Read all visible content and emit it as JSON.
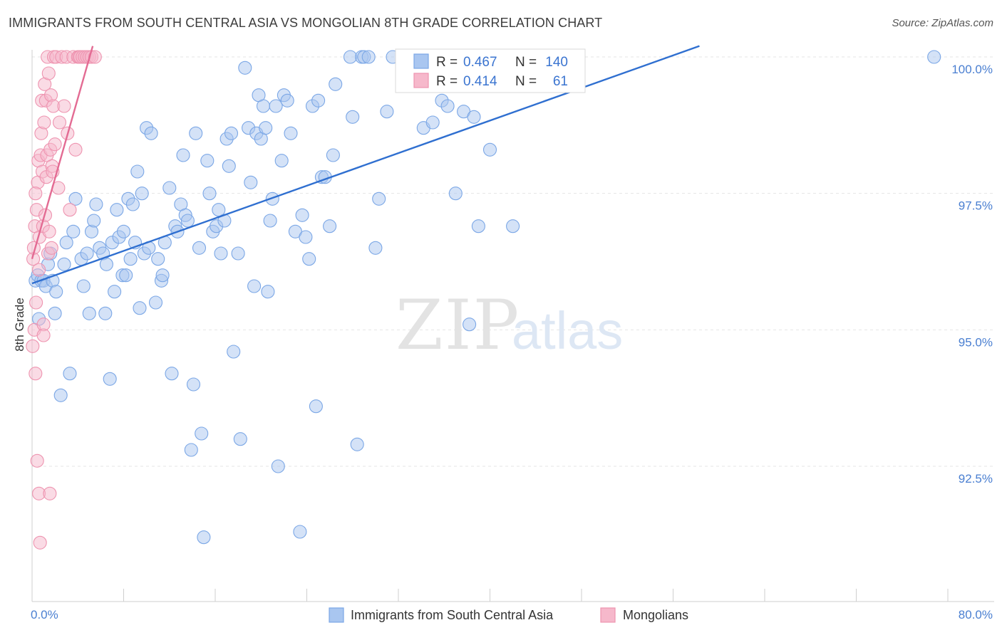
{
  "header": {
    "title": "IMMIGRANTS FROM SOUTH CENTRAL ASIA VS MONGOLIAN 8TH GRADE CORRELATION CHART",
    "source": "Source: ZipAtlas.com"
  },
  "watermark": {
    "zip": "ZIP",
    "atlas": "atlas"
  },
  "chart_data": {
    "type": "scatter",
    "ylabel": "8th Grade",
    "xlim": [
      0,
      80
    ],
    "ylim": [
      90.2,
      100.4
    ],
    "x_tick_labels": [
      {
        "value": 0,
        "label": "0.0%"
      },
      {
        "value": 80,
        "label": "80.0%"
      }
    ],
    "y_tick_labels": [
      {
        "value": 100,
        "label": "100.0%"
      },
      {
        "value": 97.5,
        "label": "97.5%"
      },
      {
        "value": 95,
        "label": "95.0%"
      },
      {
        "value": 92.5,
        "label": "92.5%"
      }
    ],
    "grid": true,
    "legend_placement": "bottom-center",
    "stats_box": {
      "rows": [
        {
          "r_label": "R =",
          "r_value": "0.467",
          "n_label": "N =",
          "n_value": "140"
        },
        {
          "r_label": "R =",
          "r_value": "0.414",
          "n_label": "N =",
          "n_value": "61"
        }
      ]
    },
    "series": [
      {
        "name": "Immigrants from South Central Asia",
        "color": "#7ba7e6",
        "fill": "#a9c6f0",
        "trend_color": "#2f6fd0",
        "trend": {
          "x1": 0,
          "y1": 95.85,
          "x2": 58.3,
          "y2": 100.2
        },
        "points": [
          [
            0.3,
            95.9
          ],
          [
            0.5,
            96.0
          ],
          [
            0.6,
            95.2
          ],
          [
            0.8,
            95.9
          ],
          [
            1.0,
            95.9
          ],
          [
            1.2,
            95.8
          ],
          [
            1.4,
            96.2
          ],
          [
            1.6,
            96.4
          ],
          [
            1.8,
            95.9
          ],
          [
            2.0,
            95.3
          ],
          [
            2.1,
            95.7
          ],
          [
            2.5,
            93.8
          ],
          [
            2.8,
            96.2
          ],
          [
            3.0,
            96.6
          ],
          [
            3.3,
            94.2
          ],
          [
            3.6,
            96.8
          ],
          [
            3.8,
            97.4
          ],
          [
            4.3,
            96.3
          ],
          [
            4.5,
            95.8
          ],
          [
            4.8,
            96.4
          ],
          [
            5.0,
            95.3
          ],
          [
            5.2,
            96.8
          ],
          [
            5.4,
            97.0
          ],
          [
            5.6,
            97.3
          ],
          [
            5.9,
            96.5
          ],
          [
            6.2,
            96.4
          ],
          [
            6.4,
            95.3
          ],
          [
            6.5,
            96.2
          ],
          [
            6.8,
            94.1
          ],
          [
            7.0,
            96.6
          ],
          [
            7.2,
            95.7
          ],
          [
            7.4,
            97.2
          ],
          [
            7.6,
            96.7
          ],
          [
            7.9,
            96.0
          ],
          [
            8.0,
            96.8
          ],
          [
            8.2,
            96.0
          ],
          [
            8.4,
            97.4
          ],
          [
            8.6,
            96.3
          ],
          [
            8.8,
            97.3
          ],
          [
            9.0,
            96.6
          ],
          [
            9.2,
            97.9
          ],
          [
            9.4,
            95.4
          ],
          [
            9.6,
            97.5
          ],
          [
            9.8,
            96.4
          ],
          [
            10.0,
            98.7
          ],
          [
            10.2,
            96.5
          ],
          [
            10.4,
            98.6
          ],
          [
            10.8,
            95.5
          ],
          [
            11.0,
            96.3
          ],
          [
            11.3,
            95.9
          ],
          [
            11.4,
            96.0
          ],
          [
            11.6,
            96.6
          ],
          [
            12.0,
            97.6
          ],
          [
            12.2,
            94.2
          ],
          [
            12.5,
            96.9
          ],
          [
            12.7,
            96.8
          ],
          [
            13.0,
            97.3
          ],
          [
            13.2,
            98.2
          ],
          [
            13.4,
            97.1
          ],
          [
            13.6,
            97.0
          ],
          [
            13.9,
            92.8
          ],
          [
            14.1,
            94.0
          ],
          [
            14.3,
            98.6
          ],
          [
            14.6,
            96.5
          ],
          [
            14.8,
            93.1
          ],
          [
            15.0,
            91.2
          ],
          [
            15.3,
            98.1
          ],
          [
            15.5,
            97.5
          ],
          [
            15.8,
            96.8
          ],
          [
            16.1,
            96.9
          ],
          [
            16.3,
            97.2
          ],
          [
            16.5,
            96.4
          ],
          [
            16.8,
            97.0
          ],
          [
            17.0,
            98.5
          ],
          [
            17.2,
            98.0
          ],
          [
            17.4,
            98.6
          ],
          [
            17.6,
            94.6
          ],
          [
            18.0,
            96.4
          ],
          [
            18.2,
            93.0
          ],
          [
            18.6,
            99.8
          ],
          [
            18.9,
            98.7
          ],
          [
            19.1,
            97.7
          ],
          [
            19.4,
            95.8
          ],
          [
            19.6,
            98.6
          ],
          [
            19.8,
            99.3
          ],
          [
            20.0,
            98.5
          ],
          [
            20.2,
            99.1
          ],
          [
            20.4,
            98.7
          ],
          [
            20.6,
            95.7
          ],
          [
            20.8,
            97.0
          ],
          [
            21.0,
            97.4
          ],
          [
            21.3,
            99.1
          ],
          [
            21.5,
            92.5
          ],
          [
            21.8,
            98.1
          ],
          [
            22.0,
            99.3
          ],
          [
            22.3,
            99.2
          ],
          [
            22.6,
            98.6
          ],
          [
            23.0,
            96.8
          ],
          [
            23.4,
            91.3
          ],
          [
            23.6,
            97.1
          ],
          [
            23.9,
            96.7
          ],
          [
            24.2,
            96.3
          ],
          [
            24.5,
            99.1
          ],
          [
            24.8,
            93.6
          ],
          [
            25.0,
            99.2
          ],
          [
            25.3,
            97.8
          ],
          [
            25.6,
            97.8
          ],
          [
            26.0,
            96.9
          ],
          [
            26.3,
            98.2
          ],
          [
            26.5,
            99.5
          ],
          [
            27.8,
            100.0
          ],
          [
            28.0,
            98.9
          ],
          [
            28.4,
            92.9
          ],
          [
            28.8,
            100.0
          ],
          [
            29.0,
            100.0
          ],
          [
            29.4,
            100.0
          ],
          [
            30.0,
            96.5
          ],
          [
            30.3,
            97.4
          ],
          [
            31.0,
            99.0
          ],
          [
            31.5,
            100.0
          ],
          [
            32.5,
            99.6
          ],
          [
            33.2,
            100.0
          ],
          [
            33.6,
            100.0
          ],
          [
            34.2,
            98.7
          ],
          [
            35.0,
            98.8
          ],
          [
            35.8,
            99.2
          ],
          [
            36.3,
            99.1
          ],
          [
            37.0,
            97.5
          ],
          [
            37.7,
            99.0
          ],
          [
            38.2,
            95.1
          ],
          [
            38.6,
            98.9
          ],
          [
            39.0,
            96.9
          ],
          [
            40.0,
            98.3
          ],
          [
            42.0,
            96.9
          ],
          [
            41.8,
            100.0
          ],
          [
            42.6,
            100.0
          ],
          [
            43.5,
            100.0
          ],
          [
            44.0,
            100.0
          ],
          [
            44.4,
            100.0
          ],
          [
            78.8,
            100.0
          ]
        ]
      },
      {
        "name": "Mongolians",
        "color": "#ee94b0",
        "fill": "#f6b8cb",
        "trend_color": "#e36b93",
        "trend": {
          "x1": 0,
          "y1": 96.3,
          "x2": 5.3,
          "y2": 100.2
        },
        "points": [
          [
            0.05,
            94.7
          ],
          [
            0.1,
            96.3
          ],
          [
            0.15,
            96.5
          ],
          [
            0.2,
            95.0
          ],
          [
            0.25,
            96.9
          ],
          [
            0.3,
            94.2
          ],
          [
            0.35,
            95.5
          ],
          [
            0.4,
            97.2
          ],
          [
            0.45,
            92.6
          ],
          [
            0.5,
            97.7
          ],
          [
            0.55,
            98.1
          ],
          [
            0.6,
            92.0
          ],
          [
            0.65,
            96.7
          ],
          [
            0.7,
            91.1
          ],
          [
            0.75,
            98.2
          ],
          [
            0.8,
            98.6
          ],
          [
            0.85,
            99.2
          ],
          [
            0.9,
            97.9
          ],
          [
            0.95,
            96.9
          ],
          [
            1.0,
            95.1
          ],
          [
            1.05,
            98.8
          ],
          [
            1.1,
            99.5
          ],
          [
            1.15,
            97.1
          ],
          [
            1.2,
            99.2
          ],
          [
            1.25,
            97.8
          ],
          [
            1.3,
            98.2
          ],
          [
            1.35,
            100.0
          ],
          [
            1.4,
            96.4
          ],
          [
            1.45,
            99.7
          ],
          [
            1.5,
            96.8
          ],
          [
            1.55,
            92.0
          ],
          [
            1.6,
            98.3
          ],
          [
            1.65,
            99.3
          ],
          [
            1.7,
            96.5
          ],
          [
            1.75,
            98.0
          ],
          [
            1.8,
            97.9
          ],
          [
            1.85,
            99.1
          ],
          [
            1.9,
            100.0
          ],
          [
            2.0,
            98.4
          ],
          [
            2.1,
            100.0
          ],
          [
            2.3,
            97.6
          ],
          [
            2.4,
            98.8
          ],
          [
            2.6,
            100.0
          ],
          [
            2.8,
            99.1
          ],
          [
            3.0,
            100.0
          ],
          [
            3.1,
            98.6
          ],
          [
            3.3,
            97.2
          ],
          [
            3.6,
            100.0
          ],
          [
            3.8,
            98.3
          ],
          [
            4.0,
            100.0
          ],
          [
            4.1,
            100.0
          ],
          [
            4.2,
            100.0
          ],
          [
            4.4,
            100.0
          ],
          [
            4.6,
            100.0
          ],
          [
            4.8,
            100.0
          ],
          [
            5.0,
            100.0
          ],
          [
            5.2,
            100.0
          ],
          [
            5.5,
            100.0
          ],
          [
            0.3,
            97.5
          ],
          [
            0.6,
            96.1
          ],
          [
            1.0,
            94.9
          ]
        ]
      }
    ]
  },
  "legend": {
    "items": [
      {
        "label": "Immigrants from South Central Asia"
      },
      {
        "label": "Mongolians"
      }
    ]
  }
}
